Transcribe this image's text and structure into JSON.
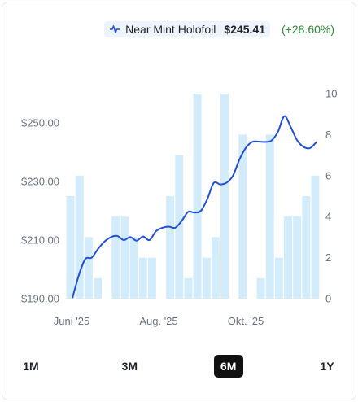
{
  "legend": {
    "series_name": "Near Mint Holofoil",
    "price": "$245.41",
    "change": "(+28.60%)",
    "icon": "line-chart-icon",
    "line_color": "#1f4fd6",
    "change_color": "#2e8b3a"
  },
  "range_buttons": [
    {
      "label": "1M",
      "active": false
    },
    {
      "label": "3M",
      "active": false
    },
    {
      "label": "6M",
      "active": true
    },
    {
      "label": "1Y",
      "active": false
    }
  ],
  "chart_data": {
    "type": "line",
    "x_tick_labels": [
      "Juni '25",
      "Aug. '25",
      "Okt. '25"
    ],
    "y_left": {
      "ticks": [
        "$190.00",
        "$210.00",
        "$230.00",
        "$250.00"
      ],
      "range": [
        190,
        260
      ]
    },
    "y_right": {
      "ticks": [
        "0",
        "2",
        "4",
        "6",
        "8",
        "10"
      ],
      "range": [
        0,
        10
      ]
    },
    "price_series": {
      "color": "#1f4fd6",
      "values": [
        190.2,
        198,
        203.5,
        204,
        207,
        209.5,
        211,
        211.4,
        210,
        211,
        209.8,
        211.2,
        210,
        213,
        214.2,
        214.6,
        214.2,
        216.5,
        219.6,
        219.4,
        220,
        224,
        229.5,
        229,
        229.6,
        232,
        237.5,
        241.5,
        243.5,
        243.6,
        243.5,
        244,
        247,
        252.3,
        248.5,
        244,
        241.8,
        241.4,
        243.5
      ]
    },
    "volume_series": {
      "color": "#d3ecfc",
      "values": [
        5,
        6,
        3,
        1,
        0,
        4,
        4,
        3,
        2,
        2,
        0,
        5,
        7,
        1,
        10,
        2,
        3,
        10,
        0,
        8,
        0,
        1,
        8,
        2,
        4,
        4,
        5,
        6
      ]
    }
  }
}
